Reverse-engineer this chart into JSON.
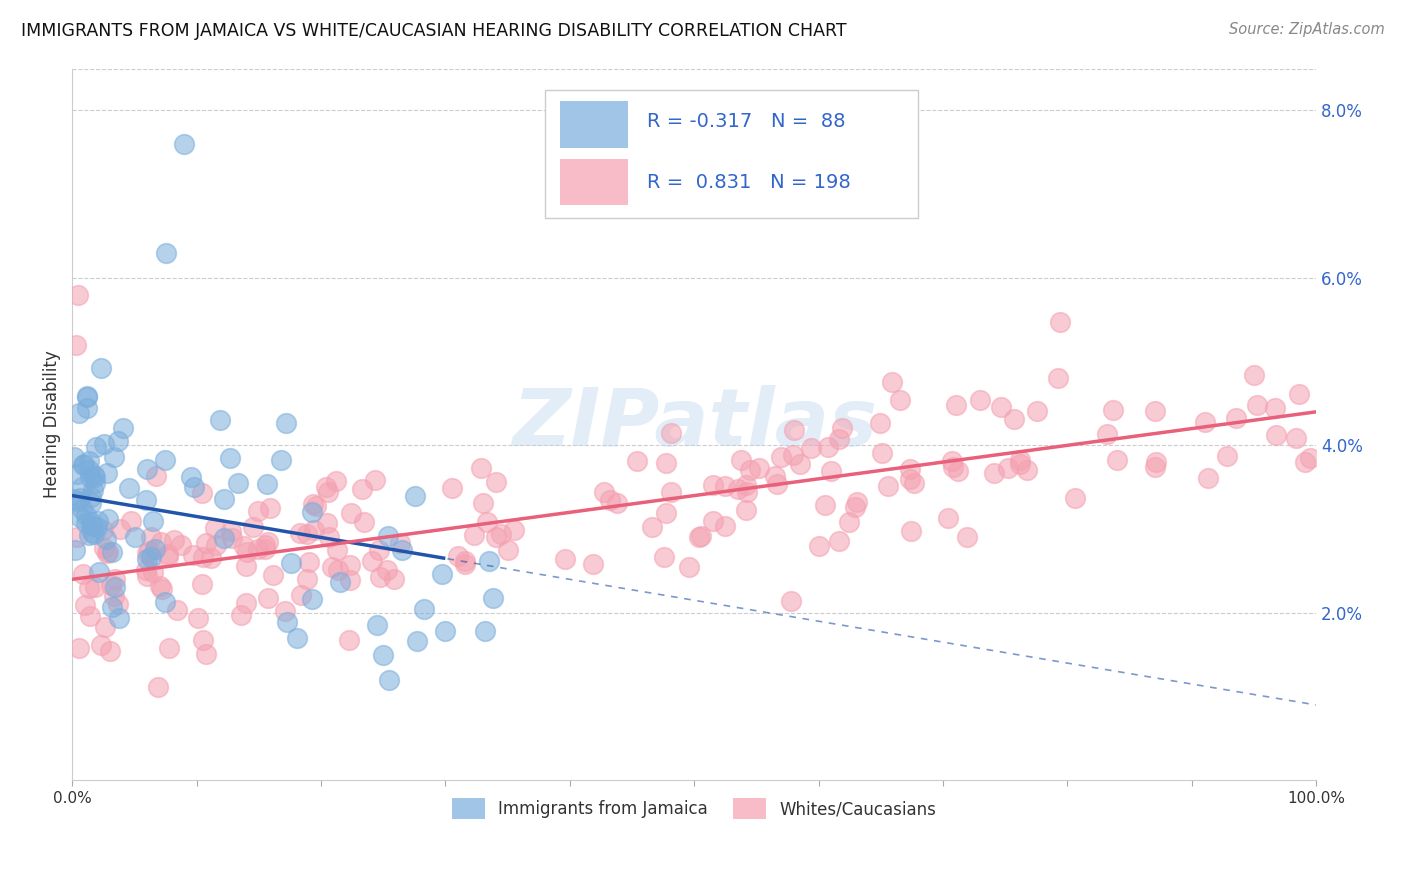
{
  "title": "IMMIGRANTS FROM JAMAICA VS WHITE/CAUCASIAN HEARING DISABILITY CORRELATION CHART",
  "source": "Source: ZipAtlas.com",
  "ylabel": "Hearing Disability",
  "xlim": [
    0,
    1.0
  ],
  "ylim": [
    0,
    0.085
  ],
  "yticks_right": [
    0.02,
    0.04,
    0.06,
    0.08
  ],
  "ytick_right_labels": [
    "2.0%",
    "4.0%",
    "6.0%",
    "8.0%"
  ],
  "blue_color": "#7AADDC",
  "pink_color": "#F4A0B0",
  "blue_line_color": "#2255AA",
  "pink_line_color": "#E8607A",
  "legend_text_color": "#3366CC",
  "label_color": "#333333",
  "R_blue": -0.317,
  "N_blue": 88,
  "R_pink": 0.831,
  "N_pink": 198,
  "watermark": "ZIPatlas",
  "background_color": "#FFFFFF",
  "grid_color": "#CCCCCC",
  "blue_intercept": 0.034,
  "blue_slope": -0.025,
  "pink_intercept": 0.024,
  "pink_slope": 0.02,
  "legend_label_blue": "Immigrants from Jamaica",
  "legend_label_pink": "Whites/Caucasians"
}
